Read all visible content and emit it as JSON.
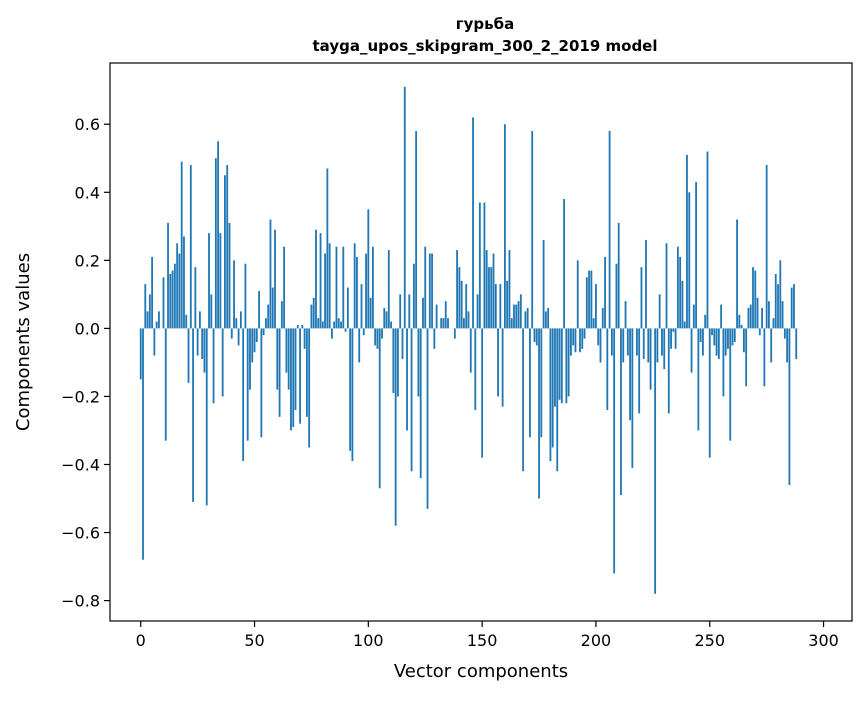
{
  "chart_data": {
    "type": "bar",
    "title": "гурьба",
    "subtitle": "tayga_upos_skipgram_300_2_2019 model",
    "xlabel": "Vector components",
    "ylabel": "Components values",
    "xlim": [
      -13.5,
      312.5
    ],
    "ylim": [
      -0.86,
      0.78
    ],
    "xticks": [
      0,
      50,
      100,
      150,
      200,
      250,
      300
    ],
    "xtick_labels": [
      "0",
      "50",
      "100",
      "150",
      "200",
      "250",
      "300"
    ],
    "yticks": [
      -0.8,
      -0.6,
      -0.4,
      -0.2,
      0.0,
      0.2,
      0.4,
      0.6
    ],
    "ytick_labels": [
      "−0.8",
      "−0.6",
      "−0.4",
      "−0.2",
      "0.0",
      "0.2",
      "0.4",
      "0.6"
    ],
    "grid": false,
    "bar_color": "#1f77b4",
    "values": [
      -0.15,
      -0.68,
      0.13,
      0.05,
      0.1,
      0.21,
      -0.08,
      0.02,
      0.05,
      0.0,
      0.15,
      -0.33,
      0.31,
      0.16,
      0.17,
      0.19,
      0.25,
      0.22,
      0.49,
      0.27,
      0.04,
      -0.16,
      0.48,
      -0.51,
      0.18,
      -0.08,
      0.05,
      -0.09,
      -0.13,
      -0.52,
      0.28,
      0.1,
      -0.22,
      0.5,
      0.55,
      0.28,
      -0.2,
      0.45,
      0.48,
      0.31,
      -0.03,
      0.2,
      0.03,
      -0.05,
      0.05,
      -0.39,
      0.19,
      -0.33,
      -0.18,
      -0.1,
      -0.07,
      -0.04,
      0.11,
      -0.32,
      -0.02,
      0.03,
      0.07,
      0.32,
      0.12,
      0.29,
      -0.18,
      -0.26,
      0.08,
      0.24,
      -0.13,
      -0.18,
      -0.3,
      -0.29,
      -0.24,
      0.01,
      -0.28,
      0.01,
      -0.06,
      -0.26,
      -0.35,
      0.07,
      0.09,
      0.29,
      0.03,
      0.28,
      0.02,
      0.22,
      0.47,
      0.25,
      -0.03,
      0.02,
      0.24,
      0.03,
      0.02,
      0.24,
      -0.01,
      0.12,
      -0.36,
      -0.39,
      0.25,
      0.21,
      -0.1,
      0.13,
      -0.02,
      0.22,
      0.35,
      0.09,
      0.24,
      -0.05,
      -0.06,
      -0.47,
      -0.03,
      0.06,
      0.05,
      0.23,
      0.02,
      -0.19,
      -0.58,
      -0.2,
      0.1,
      -0.09,
      0.71,
      -0.3,
      0.1,
      -0.42,
      0.19,
      0.58,
      -0.2,
      -0.44,
      0.09,
      0.24,
      -0.53,
      0.22,
      0.22,
      -0.06,
      0.07,
      0.0,
      0.03,
      0.03,
      0.08,
      0.03,
      0.0,
      0.0,
      -0.03,
      0.23,
      0.18,
      0.14,
      0.03,
      0.13,
      0.05,
      -0.13,
      0.62,
      -0.24,
      0.1,
      0.37,
      -0.38,
      0.37,
      0.23,
      0.18,
      0.18,
      0.22,
      0.13,
      -0.2,
      0.13,
      -0.23,
      0.6,
      0.14,
      0.23,
      0.03,
      0.07,
      0.07,
      0.08,
      0.1,
      -0.42,
      0.05,
      0.06,
      -0.32,
      0.58,
      -0.04,
      -0.05,
      -0.5,
      -0.32,
      0.26,
      0.05,
      0.06,
      -0.39,
      -0.35,
      -0.23,
      -0.42,
      -0.21,
      -0.22,
      0.38,
      -0.22,
      -0.2,
      -0.08,
      -0.05,
      -0.07,
      0.2,
      -0.07,
      -0.06,
      -0.03,
      0.15,
      0.17,
      0.17,
      0.03,
      0.13,
      -0.05,
      -0.1,
      0.06,
      0.21,
      -0.24,
      0.58,
      -0.08,
      -0.72,
      0.19,
      0.31,
      -0.49,
      -0.1,
      0.08,
      -0.08,
      -0.27,
      -0.41,
      0.0,
      -0.08,
      -0.25,
      0.18,
      -0.09,
      0.26,
      -0.1,
      -0.18,
      0.0,
      -0.78,
      -0.1,
      0.1,
      -0.08,
      -0.12,
      0.25,
      -0.25,
      -0.06,
      -0.01,
      -0.06,
      0.24,
      0.21,
      0.14,
      0.02,
      0.51,
      0.4,
      -0.13,
      0.07,
      0.43,
      -0.3,
      -0.04,
      -0.08,
      0.04,
      0.52,
      -0.38,
      -0.02,
      -0.05,
      -0.08,
      -0.09,
      0.07,
      -0.2,
      -0.08,
      -0.06,
      -0.33,
      -0.05,
      -0.04,
      0.32,
      0.04,
      0.01,
      -0.07,
      -0.17,
      0.06,
      0.07,
      0.18,
      0.17,
      0.09,
      -0.02,
      0.06,
      -0.17,
      0.48,
      0.08,
      -0.1,
      0.03,
      0.16,
      0.13,
      0.2,
      0.08,
      -0.03,
      -0.1,
      -0.46,
      0.12,
      0.13,
      -0.09,
      0.0
    ]
  }
}
